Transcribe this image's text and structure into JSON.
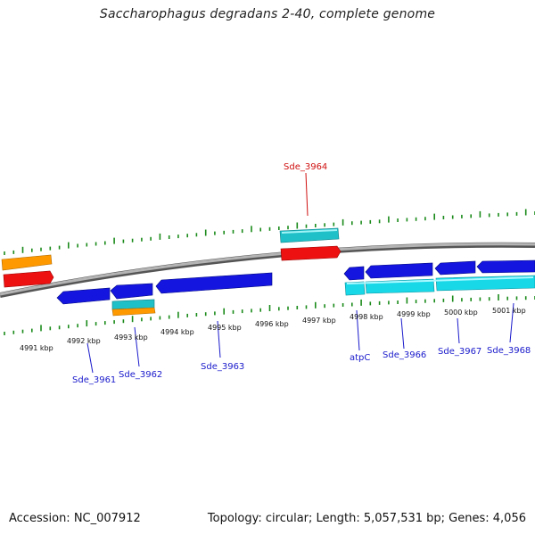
{
  "title": "Saccharophagus degradans 2-40, complete genome",
  "footer": {
    "accession": "Accession: NC_007912",
    "summary": "Topology: circular; Length: 5,057,531 bp; Genes: 4,056"
  },
  "colors": {
    "tick": "#1a8a1a",
    "backbone": "#8a8a8a",
    "gene_blue": "#1515e0",
    "gene_cyan": "#18d8e8",
    "gene_red": "#ee1111",
    "gene_orange": "#ff9900",
    "gene_teal": "#20c0c8",
    "label_blue": "#1a1acc",
    "label_red": "#d01010"
  },
  "kbp_labels": [
    "4991 kbp",
    "4992 kbp",
    "4993 kbp",
    "4994 kbp",
    "4995 kbp",
    "4996 kbp",
    "4997 kbp",
    "4998 kbp",
    "4999 kbp",
    "5000 kbp",
    "5001 kbp"
  ],
  "gene_labels": [
    "Sde_3961",
    "Sde_3962",
    "Sde_3963",
    "Sde_3964",
    "atpC",
    "Sde_3966",
    "Sde_3967",
    "Sde_3968"
  ]
}
